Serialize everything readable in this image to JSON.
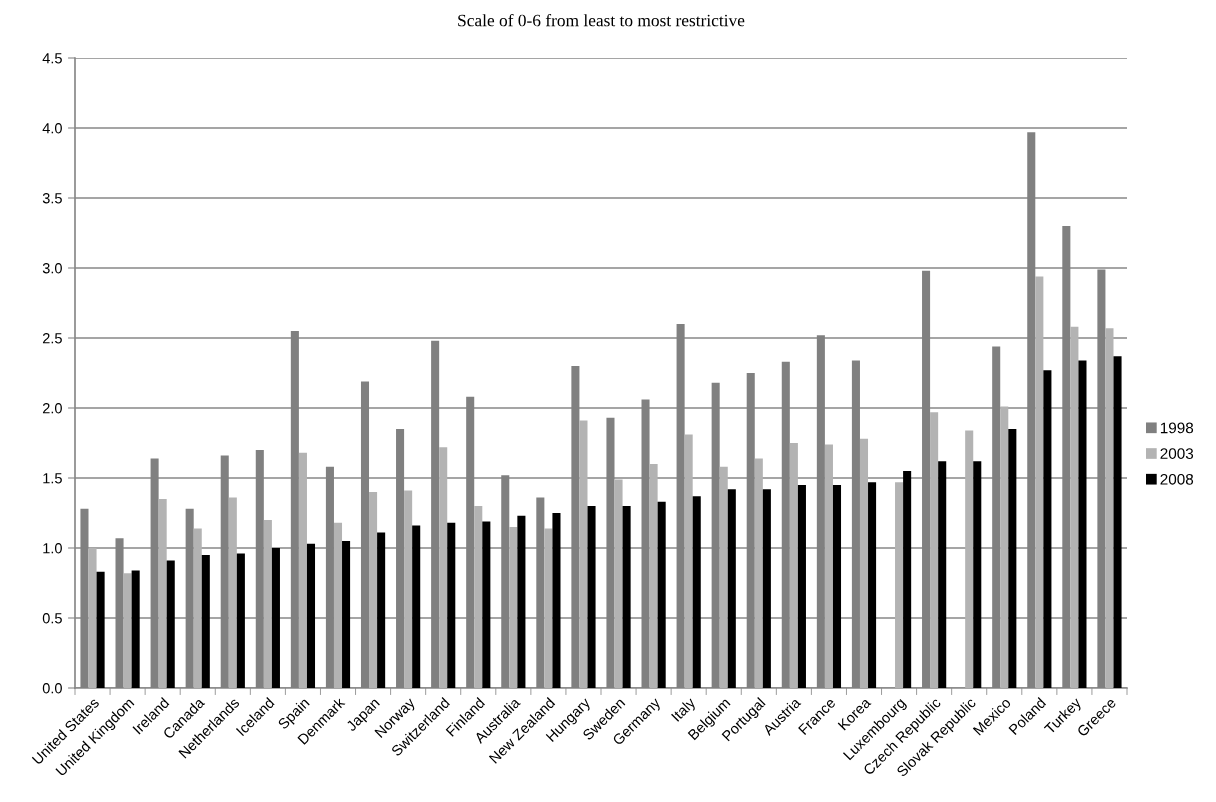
{
  "chart_data": {
    "type": "bar",
    "title": "Scale of 0-6 from least to most restrictive",
    "categories": [
      "United States",
      "United Kingdom",
      "Ireland",
      "Canada",
      "Netherlands",
      "Iceland",
      "Spain",
      "Denmark",
      "Japan",
      "Norway",
      "Switzerland",
      "Finland",
      "Australia",
      "New Zealand",
      "Hungary",
      "Sweden",
      "Germany",
      "Italy",
      "Belgium",
      "Portugal",
      "Austria",
      "France",
      "Korea",
      "Luxembourg",
      "Czech Republic",
      "Slovak Republic",
      "Mexico",
      "Poland",
      "Turkey",
      "Greece"
    ],
    "series": [
      {
        "name": "1998",
        "color": "#808080",
        "values": [
          1.28,
          1.07,
          1.64,
          1.28,
          1.66,
          1.7,
          2.55,
          1.58,
          2.19,
          1.85,
          2.48,
          2.08,
          1.52,
          1.36,
          2.3,
          1.93,
          2.06,
          2.6,
          2.18,
          2.25,
          2.33,
          2.52,
          2.34,
          null,
          2.98,
          null,
          2.44,
          3.97,
          3.3,
          2.99
        ]
      },
      {
        "name": "2003",
        "color": "#b3b3b3",
        "values": [
          1.0,
          0.82,
          1.35,
          1.14,
          1.36,
          1.2,
          1.68,
          1.18,
          1.4,
          1.41,
          1.72,
          1.3,
          1.15,
          1.14,
          1.91,
          1.49,
          1.6,
          1.81,
          1.58,
          1.64,
          1.75,
          1.74,
          1.78,
          1.47,
          1.97,
          1.84,
          2.01,
          2.94,
          2.58,
          2.57
        ]
      },
      {
        "name": "2008",
        "color": "#000000",
        "values": [
          0.83,
          0.84,
          0.91,
          0.95,
          0.96,
          1.0,
          1.03,
          1.05,
          1.11,
          1.16,
          1.18,
          1.19,
          1.23,
          1.25,
          1.3,
          1.3,
          1.33,
          1.37,
          1.42,
          1.42,
          1.45,
          1.45,
          1.47,
          1.55,
          1.62,
          1.62,
          1.85,
          2.27,
          2.34,
          2.37
        ]
      }
    ],
    "ylim": [
      0,
      4.5
    ],
    "yticks": [
      {
        "value": 0,
        "label": "0.0"
      },
      {
        "value": 0.5,
        "label": "0.5"
      },
      {
        "value": 1,
        "label": "1.0"
      },
      {
        "value": 1.5,
        "label": "1.5"
      },
      {
        "value": 2,
        "label": "2.0"
      },
      {
        "value": 2.5,
        "label": "2.5"
      },
      {
        "value": 3,
        "label": "3.0"
      },
      {
        "value": 3.5,
        "label": "3.5"
      },
      {
        "value": 4,
        "label": "4.0"
      },
      {
        "value": 4.5,
        "label": "4.5"
      }
    ],
    "grid": "y",
    "legend": "right"
  }
}
